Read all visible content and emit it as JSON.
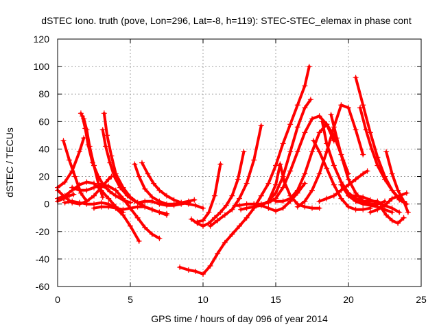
{
  "chart_data": {
    "type": "line",
    "title": "dSTEC Iono. truth (pove, Lon=296, Lat=-8, h=119): STEC-STEC_elemax in phase cont",
    "xlabel": "GPS time / hours of day 096 of year 2014",
    "ylabel": "dSTEC  / TECUs",
    "xlim": [
      0,
      25
    ],
    "ylim": [
      -60,
      120
    ],
    "xticks": [
      0,
      5,
      10,
      15,
      20,
      25
    ],
    "yticks": [
      -60,
      -40,
      -20,
      0,
      20,
      40,
      60,
      80,
      100,
      120
    ],
    "grid": true,
    "legend": "none",
    "color": "#ff0000",
    "series": [
      {
        "x": [
          0.0,
          0.5,
          1.0,
          1.5,
          2.0,
          2.5,
          3.0,
          3.5,
          3.7
        ],
        "y": [
          10,
          5,
          1,
          0,
          2,
          6,
          12,
          18,
          20
        ]
      },
      {
        "x": [
          0.0,
          0.5,
          1.0,
          1.5,
          1.8
        ],
        "y": [
          12,
          16,
          24,
          38,
          48
        ]
      },
      {
        "x": [
          0.0,
          0.4,
          0.8,
          1.1
        ],
        "y": [
          2,
          4,
          6,
          7
        ]
      },
      {
        "x": [
          0.4,
          0.8,
          1.2,
          1.6,
          2.0
        ],
        "y": [
          46,
          32,
          20,
          8,
          2
        ]
      },
      {
        "x": [
          0.0,
          0.5,
          1.0,
          1.5,
          2.0,
          2.5,
          3.0,
          3.5,
          4.0,
          4.5
        ],
        "y": [
          4,
          6,
          10,
          14,
          16,
          15,
          10,
          4,
          -2,
          -6
        ]
      },
      {
        "x": [
          0.5,
          1.0,
          1.5,
          2.0,
          2.5,
          3.0,
          3.5,
          4.0,
          4.5,
          5.0,
          5.6
        ],
        "y": [
          1,
          2,
          1,
          0,
          0,
          1,
          0,
          -3,
          -8,
          -16,
          -27
        ]
      },
      {
        "x": [
          1.6,
          1.8,
          2.0,
          2.2,
          2.5,
          2.8,
          3.1
        ],
        "y": [
          66,
          62,
          54,
          42,
          28,
          15,
          5
        ]
      },
      {
        "x": [
          1.7,
          1.9,
          2.1,
          2.4,
          2.8,
          3.2,
          3.6,
          4.0,
          4.5,
          5.0
        ],
        "y": [
          64,
          55,
          43,
          30,
          20,
          13,
          9,
          6,
          3,
          1
        ]
      },
      {
        "x": [
          1.0,
          1.5,
          2.0,
          2.5,
          3.0,
          3.5,
          4.0,
          4.5,
          5.0,
          5.5,
          6.0,
          6.5,
          7.0
        ],
        "y": [
          12,
          10,
          10,
          12,
          14,
          13,
          10,
          4,
          -3,
          -10,
          -17,
          -22,
          -25
        ]
      },
      {
        "x": [
          3.2,
          3.4,
          3.7,
          4.0,
          4.5,
          5.0,
          5.5,
          6.0,
          6.5,
          7.0,
          7.5
        ],
        "y": [
          66,
          50,
          35,
          22,
          12,
          5,
          1,
          -2,
          -4,
          -6,
          -8
        ]
      },
      {
        "x": [
          3.1,
          3.3,
          3.6,
          3.9,
          4.3,
          4.8,
          5.3,
          5.8
        ],
        "y": [
          54,
          42,
          30,
          20,
          12,
          6,
          2,
          0
        ]
      },
      {
        "x": [
          2.5,
          3.0,
          3.5,
          4.0,
          4.5,
          5.0,
          5.5,
          6.0,
          6.5,
          7.0,
          7.5
        ],
        "y": [
          -3,
          -2,
          -2,
          -3,
          -4,
          -3,
          -2,
          -2,
          -4,
          -6,
          -7
        ]
      },
      {
        "x": [
          5.3,
          5.6,
          6.0,
          6.5,
          7.0,
          7.5,
          8.0,
          8.5,
          9.0,
          9.4
        ],
        "y": [
          29,
          20,
          11,
          5,
          2,
          0,
          0,
          1,
          2,
          3
        ]
      },
      {
        "x": [
          5.8,
          6.2,
          6.6,
          7.0,
          7.5,
          8.0,
          8.5,
          9.0,
          9.5,
          10.0
        ],
        "y": [
          30,
          22,
          15,
          10,
          6,
          3,
          1,
          0,
          -1,
          -3
        ]
      },
      {
        "x": [
          5.5,
          6.0,
          6.5,
          7.0,
          7.5,
          8.0,
          8.5,
          9.0
        ],
        "y": [
          1,
          2,
          2,
          0,
          -1,
          -1,
          0,
          1
        ]
      },
      {
        "x": [
          8.4,
          9.0,
          9.5,
          10.0,
          10.5,
          11.0,
          11.5,
          12.0,
          12.5,
          13.0,
          13.5,
          14.0,
          14.5,
          15.0,
          15.5,
          16.0,
          16.5,
          17.0,
          17.3
        ],
        "y": [
          -46,
          -48,
          -49,
          -51,
          -45,
          -36,
          -28,
          -22,
          -16,
          -10,
          -3,
          6,
          15,
          28,
          44,
          58,
          72,
          86,
          100
        ]
      },
      {
        "x": [
          9.2,
          9.6,
          10.0,
          10.4,
          10.8,
          11.2,
          11.6,
          12.0,
          12.4,
          12.8
        ],
        "y": [
          -11,
          -14,
          -16,
          -14,
          -10,
          -6,
          -1,
          6,
          18,
          38
        ]
      },
      {
        "x": [
          9.6,
          10.0,
          10.4,
          10.8,
          11.2
        ],
        "y": [
          -13,
          -12,
          -6,
          6,
          29
        ]
      },
      {
        "x": [
          10.5,
          11.0,
          11.5,
          12.0,
          12.5,
          13.0,
          13.5,
          14.0
        ],
        "y": [
          -16,
          -12,
          -8,
          -4,
          4,
          15,
          32,
          57
        ]
      },
      {
        "x": [
          12.6,
          13.0,
          13.5,
          14.0,
          14.5,
          15.0,
          15.5,
          16.0,
          16.5,
          17.0,
          17.4
        ],
        "y": [
          -4,
          -3,
          -2,
          -1,
          2,
          8,
          20,
          38,
          56,
          70,
          76
        ]
      },
      {
        "x": [
          12.2,
          12.5,
          13.0,
          13.5,
          14.0,
          14.5,
          15.0,
          15.5,
          16.0,
          16.5,
          17.0
        ],
        "y": [
          -1,
          -1,
          0,
          0,
          -1,
          -3,
          -5,
          -3,
          2,
          8,
          15
        ]
      },
      {
        "x": [
          13.5,
          14.0,
          14.5,
          15.0,
          15.5,
          16.0,
          16.5,
          17.0,
          17.5,
          18.0,
          18.5,
          19.0
        ],
        "y": [
          0,
          0,
          1,
          4,
          12,
          24,
          38,
          52,
          62,
          64,
          58,
          46
        ]
      },
      {
        "x": [
          14.5,
          15.0,
          15.3,
          15.6,
          16.0,
          16.5,
          17.0,
          17.5,
          18.0
        ],
        "y": [
          2,
          14,
          29,
          16,
          6,
          0,
          -2,
          -3,
          -3
        ]
      },
      {
        "x": [
          15.0,
          15.5,
          16.0,
          16.5,
          17.0,
          17.5,
          18.0,
          18.5,
          19.0,
          19.5,
          20.0
        ],
        "y": [
          2,
          2,
          4,
          10,
          22,
          38,
          52,
          58,
          50,
          36,
          22
        ]
      },
      {
        "x": [
          16.5,
          17.0,
          17.5,
          18.0,
          18.5,
          19.0,
          19.5,
          20.0,
          20.5,
          21.0
        ],
        "y": [
          -2,
          2,
          10,
          22,
          38,
          56,
          72,
          70,
          54,
          36
        ]
      },
      {
        "x": [
          17.6,
          18.0,
          18.5,
          19.0,
          19.5,
          20.0,
          20.5,
          21.0,
          21.5
        ],
        "y": [
          46,
          38,
          26,
          14,
          4,
          -2,
          -4,
          -4,
          -3
        ]
      },
      {
        "x": [
          18.2,
          18.5,
          19.0,
          19.5,
          20.0,
          20.5,
          21.0,
          21.5,
          22.0
        ],
        "y": [
          60,
          44,
          28,
          16,
          8,
          4,
          2,
          2,
          2
        ]
      },
      {
        "x": [
          18.8,
          19.2,
          19.6,
          20.0,
          20.5,
          21.0,
          21.5,
          22.0,
          22.5
        ],
        "y": [
          65,
          48,
          32,
          18,
          8,
          2,
          0,
          0,
          2
        ]
      },
      {
        "x": [
          18.0,
          18.5,
          19.0,
          19.5,
          20.0,
          20.5,
          21.0,
          21.3
        ],
        "y": [
          2,
          4,
          6,
          10,
          14,
          18,
          22,
          24
        ]
      },
      {
        "x": [
          19.5,
          20.0,
          20.5,
          21.0,
          21.5,
          22.0,
          22.5,
          23.0
        ],
        "y": [
          14,
          6,
          2,
          0,
          -1,
          -2,
          -4,
          -6
        ]
      },
      {
        "x": [
          20.0,
          20.5,
          21.0,
          21.5,
          22.0,
          22.5,
          23.0,
          23.5
        ],
        "y": [
          6,
          6,
          5,
          3,
          1,
          -1,
          -3,
          -6
        ]
      },
      {
        "x": [
          20.5,
          21.0,
          21.5,
          22.0,
          22.5,
          23.0,
          23.5,
          24.0
        ],
        "y": [
          92,
          72,
          52,
          34,
          20,
          10,
          3,
          0
        ]
      },
      {
        "x": [
          20.8,
          21.2,
          21.6,
          22.0,
          22.5,
          23.0,
          23.5,
          24.0
        ],
        "y": [
          70,
          54,
          40,
          28,
          18,
          10,
          4,
          0
        ]
      },
      {
        "x": [
          21.5,
          22.0,
          22.5,
          22.8,
          23.0,
          23.5,
          24.0
        ],
        "y": [
          -6,
          -4,
          -1,
          2,
          4,
          6,
          8
        ]
      },
      {
        "x": [
          22.2,
          22.6,
          23.0,
          23.4,
          23.8
        ],
        "y": [
          -2,
          -8,
          -12,
          -14,
          -10
        ]
      },
      {
        "x": [
          22.6,
          23.0,
          23.4,
          23.8,
          24.1
        ],
        "y": [
          38,
          22,
          10,
          2,
          -6
        ]
      }
    ]
  }
}
